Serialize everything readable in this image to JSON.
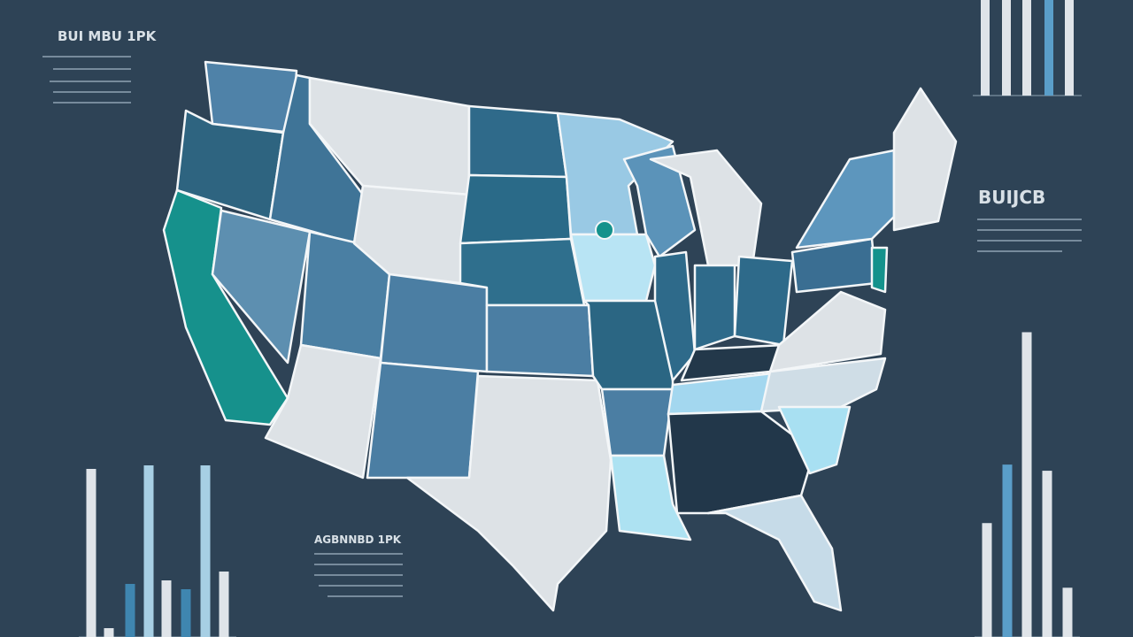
{
  "header": {
    "title": "BUI MBU 1PK"
  },
  "side_panel": {
    "title": "BUIJCB"
  },
  "footer_panel": {
    "title": "AGBNNBD 1PK"
  },
  "charts": [
    {
      "type": "bar",
      "ylim": [
        0,
        100
      ],
      "values": [
        100,
        100,
        100,
        100,
        100
      ],
      "colors": [
        "#dfe4e9",
        "#dfe4e9",
        "#dfe4e9",
        "#5a9ec9",
        "#dfe4e9"
      ]
    },
    {
      "type": "bar",
      "ylim": [
        0,
        100
      ],
      "values": [
        95,
        5,
        30,
        97,
        32,
        27,
        97,
        37
      ],
      "colors": [
        "#dfe4e9",
        "#dfe4e9",
        "#3f86b0",
        "#a7cfe4",
        "#dfe4e9",
        "#3f86b0",
        "#a7cfe4",
        "#dfe4e9"
      ]
    },
    {
      "type": "bar",
      "ylim": [
        0,
        100
      ],
      "values": [
        37,
        56,
        99,
        54,
        16
      ],
      "colors": [
        "#dfe4e9",
        "#5a9ec9",
        "#dfe4e9",
        "#dfe4e9",
        "#dfe4e9"
      ]
    }
  ]
}
